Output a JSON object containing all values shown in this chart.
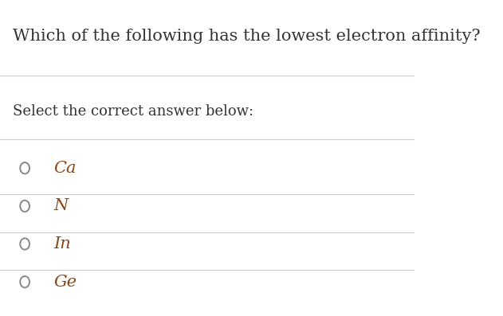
{
  "title": "Which of the following has the lowest electron affinity?",
  "subtitle": "Select the correct answer below:",
  "options": [
    "Ca",
    "N",
    "In",
    "Ge"
  ],
  "title_color": "#333333",
  "subtitle_color": "#333333",
  "option_color": "#8B4513",
  "circle_color": "#888888",
  "line_color": "#cccccc",
  "bg_color": "#ffffff",
  "title_fontsize": 15,
  "subtitle_fontsize": 13,
  "option_fontsize": 15,
  "fig_width": 6.31,
  "fig_height": 3.97
}
